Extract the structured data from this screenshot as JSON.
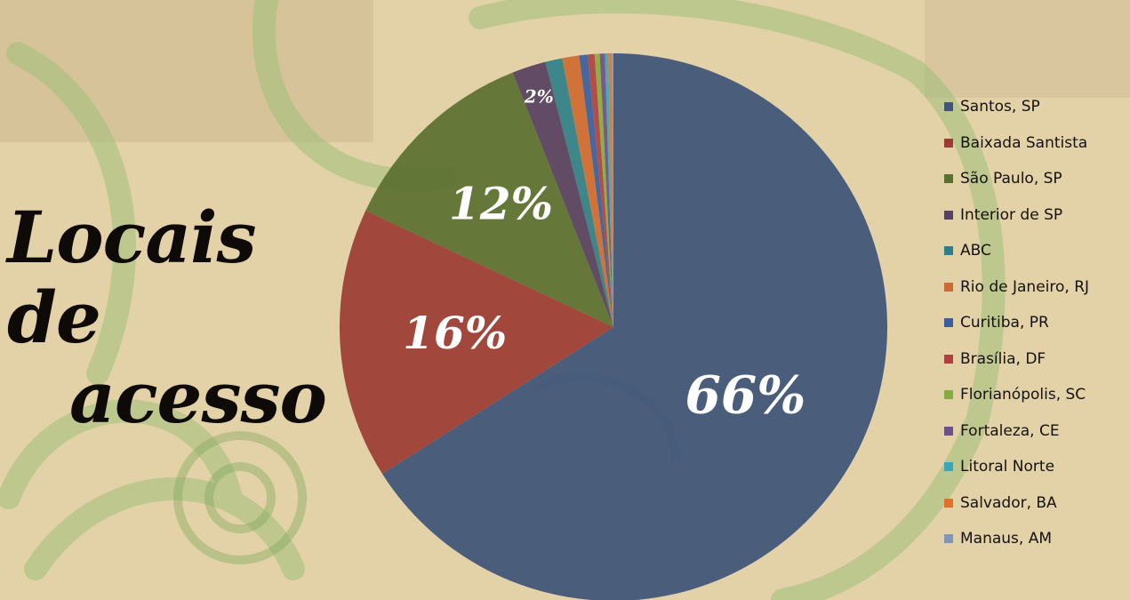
{
  "title": [
    "Locais de",
    "acesso"
  ],
  "chart_data": {
    "type": "pie",
    "labels": [
      "Santos, SP",
      "Baixada Santista",
      "São Paulo, SP",
      "Interior de SP",
      "ABC",
      "Rio de Janeiro, RJ",
      "Curitiba, PR",
      "Brasília, DF",
      "Florianópolis, SC",
      "Fortaleza, CE",
      "Litoral Norte",
      "Salvador, BA",
      "Manaus, AM"
    ],
    "values": [
      66,
      16,
      12,
      2,
      1,
      1,
      0.5,
      0.4,
      0.3,
      0.3,
      0.2,
      0.2,
      0.1
    ],
    "data_labels": [
      "66%",
      "16%",
      "12%",
      "2%",
      "",
      "",
      "",
      "",
      "",
      "",
      "",
      "",
      ""
    ],
    "colors": [
      "#3d5478",
      "#9b3b32",
      "#5a7030",
      "#574060",
      "#2f7f88",
      "#cf6a30",
      "#3a5e9e",
      "#b04040",
      "#86ab3e",
      "#6e5088",
      "#38a8b8",
      "#e5702a",
      "#8096b8"
    ],
    "legend_position": "right"
  }
}
